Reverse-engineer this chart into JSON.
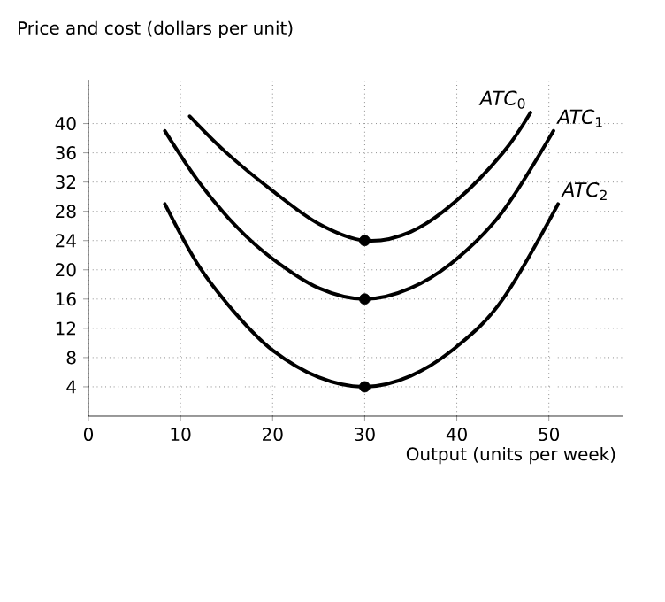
{
  "chart_data": {
    "type": "line",
    "xlabel": "Output (units per week)",
    "ylabel": "Price and cost (dollars per unit)",
    "xlim": [
      0,
      58
    ],
    "ylim": [
      0,
      46
    ],
    "xticks": [
      0,
      10,
      20,
      30,
      40,
      50
    ],
    "yticks": [
      4,
      8,
      12,
      16,
      20,
      24,
      28,
      32,
      36,
      40
    ],
    "grid": true,
    "line_style": "solid",
    "marker": "none",
    "series": [
      {
        "name": "*ATC*$_{0}$",
        "color": "#000000",
        "x": [
          11,
          15,
          20,
          25,
          30,
          35,
          40,
          45,
          48
        ],
        "values": [
          41,
          36,
          30.8,
          26.3,
          24,
          25.2,
          29.5,
          36,
          41.5
        ]
      },
      {
        "name": "*ATC*$_{1}$",
        "color": "#000000",
        "x": [
          8.3,
          12,
          16,
          20,
          25,
          30,
          35,
          40,
          45,
          50.5
        ],
        "values": [
          39,
          32,
          26,
          21.5,
          17.5,
          16,
          17.5,
          21.5,
          28,
          39
        ]
      },
      {
        "name": "*ATC*$_{2}$",
        "color": "#000000",
        "x": [
          8.3,
          12,
          16,
          20,
          25,
          30,
          35,
          40,
          45,
          51
        ],
        "values": [
          29,
          20.5,
          14,
          9,
          5.3,
          4,
          5.5,
          9.5,
          16,
          29
        ]
      },
      {
        "type": "scatter",
        "marker": "circle",
        "color": "#000000",
        "x": [
          30,
          30,
          30
        ],
        "values": [
          24,
          16,
          4
        ]
      }
    ]
  }
}
